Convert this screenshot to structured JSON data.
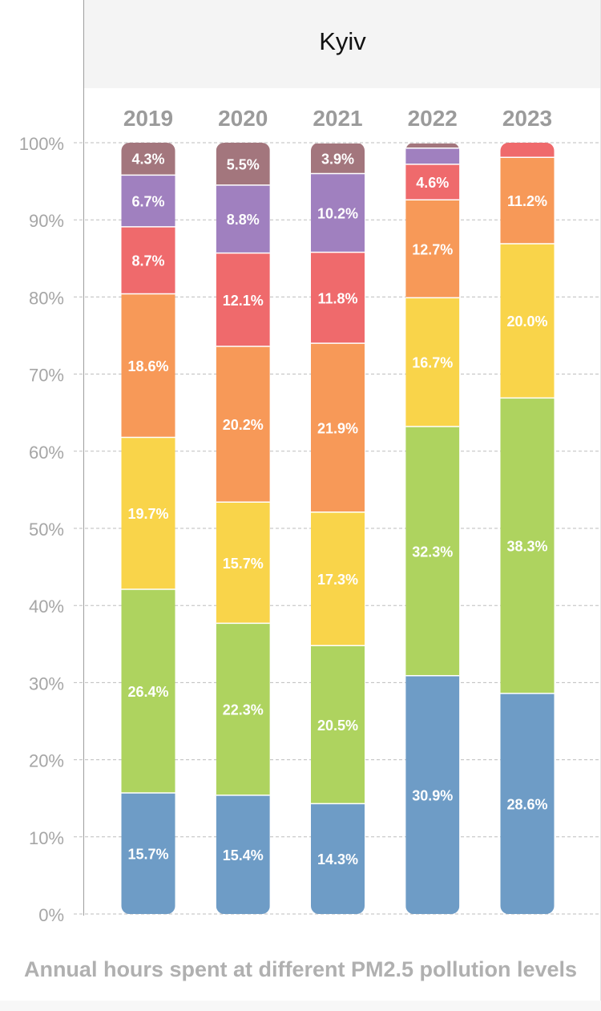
{
  "header": {
    "city": "Kyiv"
  },
  "footer": {
    "subtitle": "Annual hours spent at different PM2.5 pollution levels"
  },
  "colors": {
    "level_1": "#6e9cc6",
    "level_2": "#aed35f",
    "level_3": "#f9d44a",
    "level_4": "#f79958",
    "level_5": "#ef6a6c",
    "level_6": "#a080bf",
    "level_7": "#a3767d",
    "gridline": "#bdbdbd",
    "tick_text": "#a6a6a6",
    "year_text": "#9b9b9b"
  },
  "chart_data": {
    "type": "bar",
    "stacked": true,
    "title": "Kyiv",
    "subtitle": "Annual hours spent at different PM2.5 pollution levels",
    "categories": [
      "2019",
      "2020",
      "2021",
      "2022",
      "2023"
    ],
    "y_ticks": [
      "0%",
      "10%",
      "20%",
      "30%",
      "40%",
      "50%",
      "60%",
      "70%",
      "80%",
      "90%",
      "100%"
    ],
    "ylim": [
      0,
      100
    ],
    "grid": true,
    "series": [
      {
        "color_key": "level_1",
        "values": [
          15.7,
          15.4,
          14.3,
          30.9,
          28.6
        ],
        "labels": [
          "15.7%",
          "15.4%",
          "14.3%",
          "30.9%",
          "28.6%"
        ]
      },
      {
        "color_key": "level_2",
        "values": [
          26.4,
          22.3,
          20.5,
          32.3,
          38.3
        ],
        "labels": [
          "26.4%",
          "22.3%",
          "20.5%",
          "32.3%",
          "38.3%"
        ]
      },
      {
        "color_key": "level_3",
        "values": [
          19.7,
          15.7,
          17.3,
          16.7,
          20.0
        ],
        "labels": [
          "19.7%",
          "15.7%",
          "17.3%",
          "16.7%",
          "20.0%"
        ]
      },
      {
        "color_key": "level_4",
        "values": [
          18.6,
          20.2,
          21.9,
          12.7,
          11.2
        ],
        "labels": [
          "18.6%",
          "20.2%",
          "21.9%",
          "12.7%",
          "11.2%"
        ]
      },
      {
        "color_key": "level_5",
        "values": [
          8.7,
          12.1,
          11.8,
          4.6,
          1.9
        ],
        "labels": [
          "8.7%",
          "12.1%",
          "11.8%",
          "4.6%",
          ""
        ]
      },
      {
        "color_key": "level_6",
        "values": [
          6.7,
          8.8,
          10.2,
          2.1,
          0
        ],
        "labels": [
          "6.7%",
          "8.8%",
          "10.2%",
          "",
          ""
        ]
      },
      {
        "color_key": "level_7",
        "values": [
          4.3,
          5.5,
          3.9,
          0.6,
          0
        ],
        "labels": [
          "4.3%",
          "5.5%",
          "3.9%",
          "",
          ""
        ]
      }
    ]
  }
}
